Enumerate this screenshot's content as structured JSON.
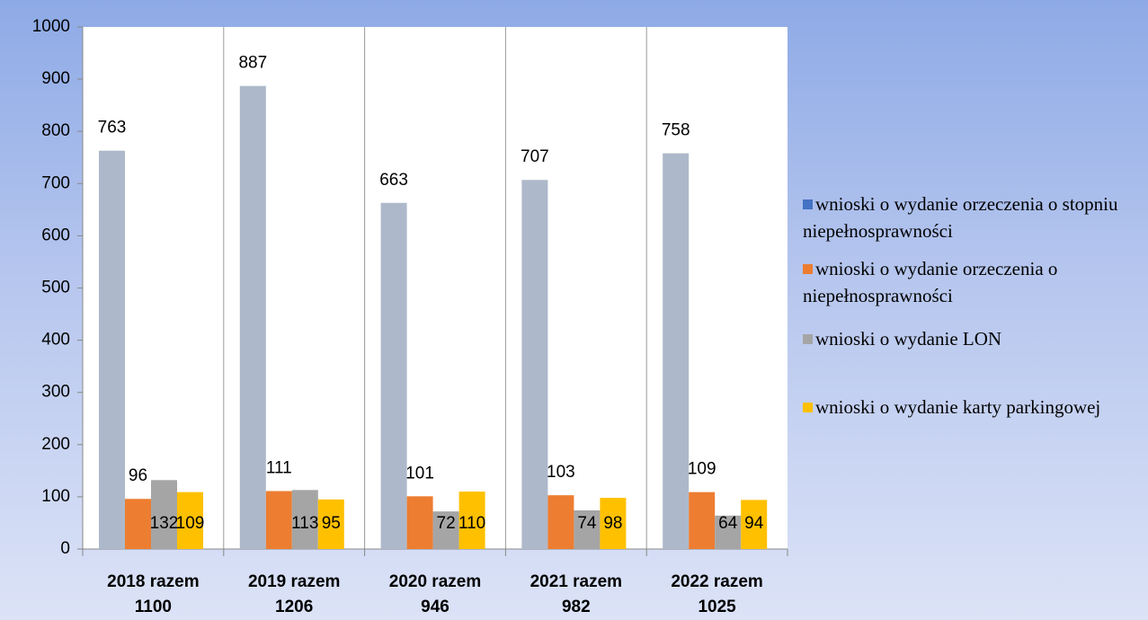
{
  "chart_data": {
    "type": "bar",
    "categories": [
      [
        "2018 razem",
        "1100"
      ],
      [
        "2019 razem",
        "1206"
      ],
      [
        "2020 razem",
        "946"
      ],
      [
        "2021 razem",
        "982"
      ],
      [
        "2022 razem",
        "1025"
      ]
    ],
    "series": [
      {
        "name": "wnioski o wydanie orzeczenia o stopniu niepełnosprawności",
        "color": "#adb9ca",
        "legend_color": "#4472c4",
        "values": [
          763,
          887,
          663,
          707,
          758
        ]
      },
      {
        "name": "wnioski o wydanie orzeczenia o niepełnosprawności",
        "color": "#ed7d31",
        "legend_color": "#ed7d31",
        "values": [
          96,
          111,
          101,
          103,
          109
        ]
      },
      {
        "name": "wnioski o wydanie LON",
        "color": "#a5a5a5",
        "legend_color": "#a5a5a5",
        "values": [
          132,
          113,
          72,
          74,
          64
        ]
      },
      {
        "name": "wnioski o wydanie karty parkingowej",
        "color": "#ffc000",
        "legend_color": "#ffc000",
        "values": [
          109,
          95,
          110,
          98,
          94
        ]
      }
    ],
    "ylim": [
      0,
      1000
    ],
    "yticks": [
      0,
      100,
      200,
      300,
      400,
      500,
      600,
      700,
      800,
      900,
      1000
    ],
    "grid": true,
    "legend": "right"
  }
}
